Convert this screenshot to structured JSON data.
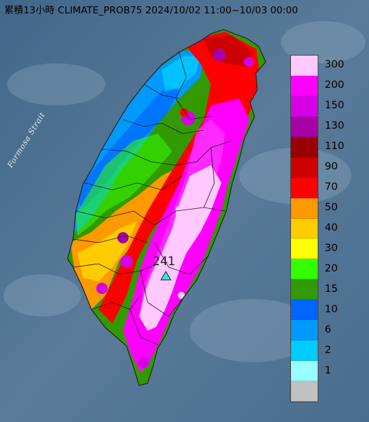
{
  "title": "累積13小時 CLIMATE_PROB75 2024/10/02 11:00~10/03 00:00",
  "water_label": "Formosa Strait",
  "peak": {
    "value": "241",
    "marker": "triangle-marker-icon"
  },
  "legend": {
    "labels": [
      "300",
      "200",
      "150",
      "130",
      "110",
      "90",
      "70",
      "50",
      "40",
      "30",
      "20",
      "15",
      "10",
      "6",
      "2",
      "1"
    ],
    "colors": [
      "#ffc8ff",
      "#ff00ff",
      "#d600e6",
      "#a600a6",
      "#990000",
      "#cc0000",
      "#ff0000",
      "#ff9900",
      "#ffcc00",
      "#ffff00",
      "#33ff00",
      "#339900",
      "#0066ff",
      "#0099ff",
      "#00ccff",
      "#99ffff",
      "#c0c0c0"
    ]
  }
}
